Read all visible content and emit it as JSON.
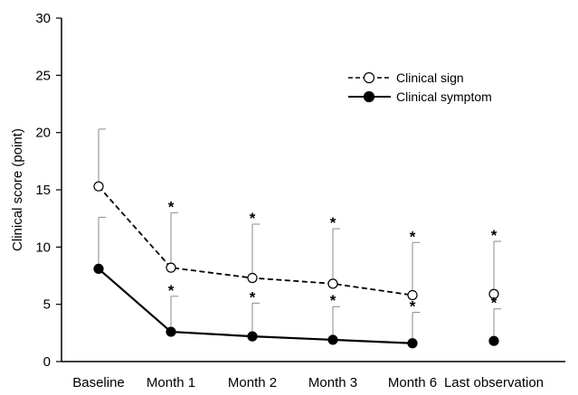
{
  "chart_data": {
    "type": "line",
    "title": "",
    "xlabel": "",
    "ylabel": "Clinical score (point)",
    "ylim": [
      0,
      30
    ],
    "yticks": [
      0,
      5,
      10,
      15,
      20,
      25,
      30
    ],
    "grid": false,
    "legend_position": "top-right",
    "categories": [
      "Baseline",
      "Month 1",
      "Month 2",
      "Month 3",
      "Month 6",
      "Last observation"
    ],
    "series": [
      {
        "name": "Clinical sign",
        "marker": "open-circle",
        "line_style": "dashed",
        "color": "#000000",
        "values": [
          15.3,
          8.2,
          7.3,
          6.8,
          5.8,
          5.9
        ],
        "error_upper": [
          20.3,
          13.0,
          12.0,
          11.6,
          10.4,
          10.5
        ],
        "connected": [
          true,
          true,
          true,
          true,
          true,
          false
        ],
        "significance": [
          "",
          "*",
          "*",
          "*",
          "*",
          "*"
        ]
      },
      {
        "name": "Clinical symptom",
        "marker": "filled-circle",
        "line_style": "solid",
        "color": "#000000",
        "values": [
          8.1,
          2.6,
          2.2,
          1.9,
          1.6,
          1.8
        ],
        "error_upper": [
          12.6,
          5.7,
          5.1,
          4.8,
          4.3,
          4.6
        ],
        "connected": [
          true,
          true,
          true,
          true,
          true,
          false
        ],
        "significance": [
          "",
          "*",
          "*",
          "*",
          "*",
          "*"
        ]
      }
    ]
  }
}
